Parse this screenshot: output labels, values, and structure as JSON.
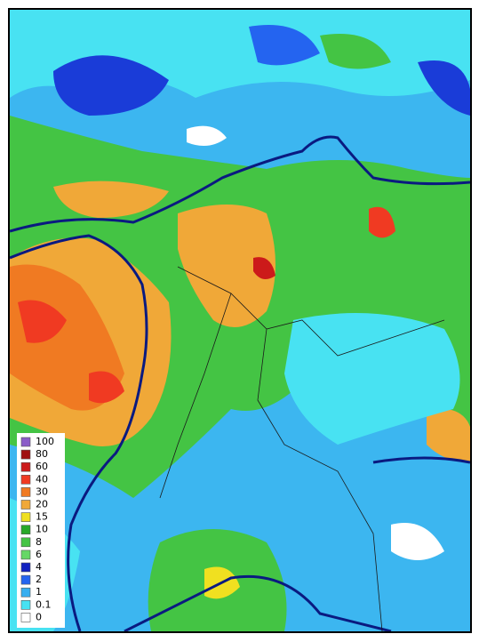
{
  "legend": {
    "items": [
      {
        "label": "100",
        "color": "#8a5cc8"
      },
      {
        "label": "80",
        "color": "#a01010"
      },
      {
        "label": "60",
        "color": "#cc1a1a"
      },
      {
        "label": "40",
        "color": "#f03a22"
      },
      {
        "label": "30",
        "color": "#f07a22"
      },
      {
        "label": "20",
        "color": "#f0a838"
      },
      {
        "label": "15",
        "color": "#f0e020"
      },
      {
        "label": "10",
        "color": "#28a828"
      },
      {
        "label": "8",
        "color": "#44c444"
      },
      {
        "label": "6",
        "color": "#66d866"
      },
      {
        "label": "4",
        "color": "#1020c0"
      },
      {
        "label": "2",
        "color": "#2464f0"
      },
      {
        "label": "1",
        "color": "#38aef0"
      },
      {
        "label": "0.1",
        "color": "#48e2f2"
      },
      {
        "label": "0",
        "color": "#ffffff"
      }
    ]
  }
}
